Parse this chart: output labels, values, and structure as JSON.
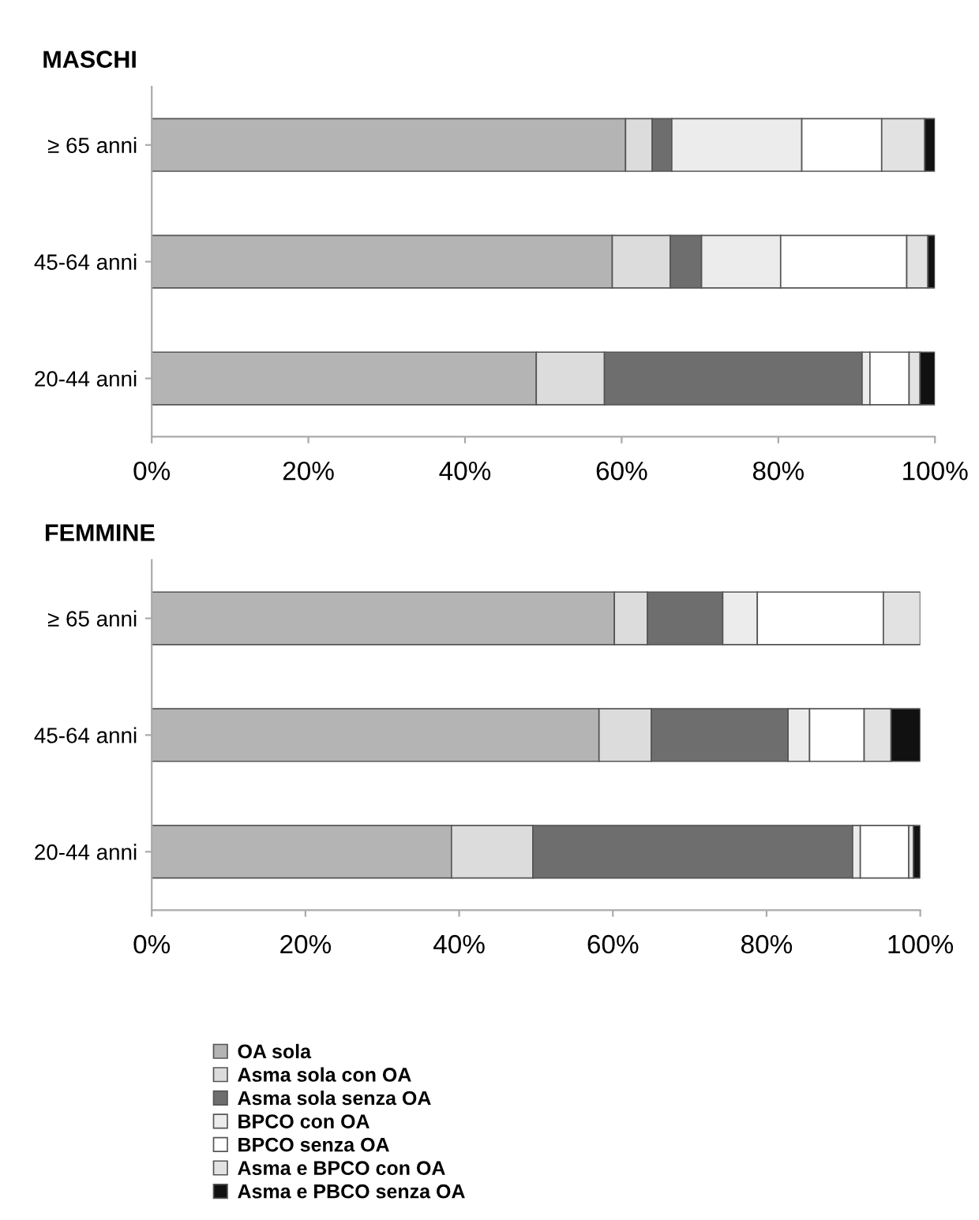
{
  "chart_data": [
    {
      "type": "bar",
      "orientation": "horizontal",
      "stacked": true,
      "title": "MASCHI",
      "categories": [
        "≥ 65 anni",
        "45-64 anni",
        "20-44 anni"
      ],
      "xlim": [
        0,
        100
      ],
      "xticks": [
        {
          "value": 0,
          "label": "0%"
        },
        {
          "value": 20,
          "label": "20%"
        },
        {
          "value": 40,
          "label": "40%"
        },
        {
          "value": 60,
          "label": "60%"
        },
        {
          "value": 80,
          "label": "80%"
        },
        {
          "value": 100,
          "label": "100%"
        }
      ],
      "grid": false,
      "legend": false,
      "series": [
        {
          "color": "#b4b4b4",
          "values": [
            60.5,
            58.8,
            49.1
          ]
        },
        {
          "color": "#dcdcdc",
          "values": [
            3.4,
            7.4,
            8.7
          ]
        },
        {
          "color": "#6e6e6e",
          "values": [
            2.5,
            4.0,
            32.9
          ]
        },
        {
          "color": "#ececec",
          "values": [
            16.6,
            10.1,
            1.0
          ]
        },
        {
          "color": "#ffffff",
          "values": [
            10.2,
            16.1,
            5.0
          ]
        },
        {
          "color": "#e2e2e2",
          "values": [
            5.5,
            2.7,
            1.4
          ]
        },
        {
          "color": "#111111",
          "values": [
            1.3,
            0.9,
            1.9
          ]
        }
      ]
    },
    {
      "type": "bar",
      "orientation": "horizontal",
      "stacked": true,
      "title": "FEMMINE",
      "categories": [
        "≥ 65 anni",
        "45-64 anni",
        "20-44 anni"
      ],
      "xlim": [
        0,
        100
      ],
      "xticks": [
        {
          "value": 0,
          "label": "0%"
        },
        {
          "value": 20,
          "label": "20%"
        },
        {
          "value": 40,
          "label": "40%"
        },
        {
          "value": 60,
          "label": "60%"
        },
        {
          "value": 80,
          "label": "80%"
        },
        {
          "value": 100,
          "label": "100%"
        }
      ],
      "grid": false,
      "legend": "bottom",
      "series": [
        {
          "name": "OA sola",
          "color": "#b4b4b4",
          "values": [
            60.2,
            58.2,
            39.0
          ]
        },
        {
          "name": "Asma sola con OA",
          "color": "#dcdcdc",
          "values": [
            4.3,
            6.8,
            10.6
          ]
        },
        {
          "name": "Asma sola senza OA",
          "color": "#6e6e6e",
          "values": [
            9.8,
            17.8,
            41.6
          ]
        },
        {
          "name": "BPCO con OA",
          "color": "#ececec",
          "values": [
            4.5,
            2.8,
            1.0
          ]
        },
        {
          "name": "BPCO senza OA",
          "color": "#ffffff",
          "values": [
            16.4,
            7.1,
            6.3
          ]
        },
        {
          "name": "Asma e BPCO con OA",
          "color": "#e2e2e2",
          "values": [
            4.8,
            3.5,
            0.6
          ]
        },
        {
          "name": "Asma e PBCO senza OA",
          "color": "#111111",
          "values": [
            0.0,
            3.8,
            0.9
          ]
        }
      ]
    }
  ]
}
